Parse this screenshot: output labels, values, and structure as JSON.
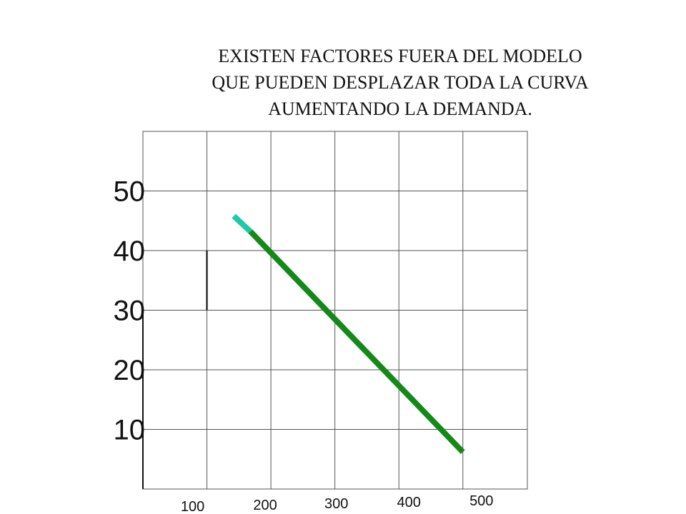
{
  "title_lines": [
    "EXISTEN FACTORES FUERA DEL MODELO",
    "QUE PUEDEN DESPLAZAR TODA LA CURVA",
    "AUMENTANDO  LA DEMANDA."
  ],
  "chart_data": {
    "type": "line",
    "title": "EXISTEN FACTORES FUERA DEL MODELO QUE PUEDEN DESPLAZAR TODA LA CURVA AUMENTANDO  LA DEMANDA.",
    "xlabel": "",
    "ylabel": "",
    "x_ticks": [
      "100",
      "200",
      "300",
      "400",
      "500"
    ],
    "y_ticks": [
      "10",
      "20",
      "30",
      "40",
      "50"
    ],
    "xlim": [
      0,
      550
    ],
    "ylim": [
      0,
      60
    ],
    "grid": true,
    "series": [
      {
        "x": [
          142,
          168
        ],
        "y": [
          45.8,
          43.2
        ],
        "color": "#1fc9a8"
      },
      {
        "x": [
          168,
          500
        ],
        "y": [
          43.2,
          6.2
        ],
        "color": "#138a18"
      }
    ],
    "marker": {
      "x": 100,
      "y": [
        30,
        40
      ],
      "color": "#000000"
    }
  }
}
